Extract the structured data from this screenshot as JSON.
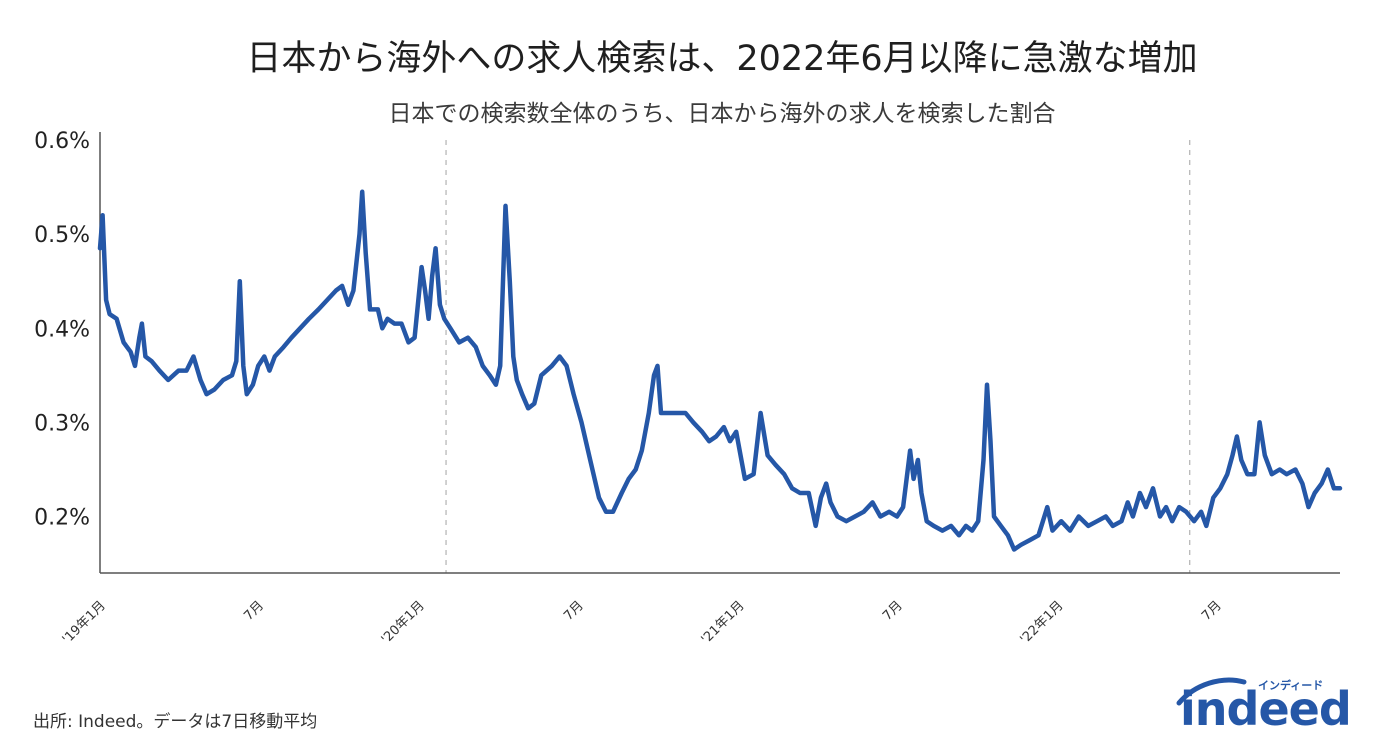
{
  "chart_data": {
    "type": "line",
    "title": "日本から海外への求人検索は、2022年6月以降に急激な増加",
    "subtitle": "日本での検索数全体のうち、日本から海外の求人を検索した割合",
    "xlabel": "",
    "ylabel": "",
    "ylim": [
      0.14,
      0.6
    ],
    "x_range": [
      "2019-01-01",
      "2022-11-20"
    ],
    "yticks": [
      {
        "value": 0.6,
        "label": "0.6%"
      },
      {
        "value": 0.5,
        "label": "0.5%"
      },
      {
        "value": 0.4,
        "label": "0.4%"
      },
      {
        "value": 0.3,
        "label": "0.3%"
      },
      {
        "value": 0.2,
        "label": "0.2%"
      }
    ],
    "xticks": [
      {
        "date": "2019-01-01",
        "label": "'19年1月"
      },
      {
        "date": "2019-07-01",
        "label": "7月"
      },
      {
        "date": "2020-01-01",
        "label": "'20年1月"
      },
      {
        "date": "2020-07-01",
        "label": "7月"
      },
      {
        "date": "2021-01-01",
        "label": "'21年1月"
      },
      {
        "date": "2021-07-01",
        "label": "7月"
      },
      {
        "date": "2022-01-01",
        "label": "'22年1月"
      },
      {
        "date": "2022-07-01",
        "label": "7月"
      }
    ],
    "reference_lines": [
      {
        "date": "2020-02-01",
        "style": "dashed"
      },
      {
        "date": "2022-06-01",
        "style": "dashed"
      }
    ],
    "grid": false,
    "legend": "none",
    "series": [
      {
        "color": "#2557a7",
        "points": [
          [
            "2019-01-01",
            0.485
          ],
          [
            "2019-01-04",
            0.52
          ],
          [
            "2019-01-08",
            0.43
          ],
          [
            "2019-01-12",
            0.415
          ],
          [
            "2019-01-20",
            0.41
          ],
          [
            "2019-01-28",
            0.385
          ],
          [
            "2019-02-05",
            0.375
          ],
          [
            "2019-02-10",
            0.36
          ],
          [
            "2019-02-15",
            0.39
          ],
          [
            "2019-02-18",
            0.405
          ],
          [
            "2019-02-22",
            0.37
          ],
          [
            "2019-03-01",
            0.365
          ],
          [
            "2019-03-10",
            0.355
          ],
          [
            "2019-03-20",
            0.345
          ],
          [
            "2019-04-01",
            0.355
          ],
          [
            "2019-04-10",
            0.355
          ],
          [
            "2019-04-18",
            0.37
          ],
          [
            "2019-04-26",
            0.345
          ],
          [
            "2019-05-03",
            0.33
          ],
          [
            "2019-05-12",
            0.335
          ],
          [
            "2019-05-22",
            0.345
          ],
          [
            "2019-06-01",
            0.35
          ],
          [
            "2019-06-06",
            0.365
          ],
          [
            "2019-06-10",
            0.45
          ],
          [
            "2019-06-14",
            0.36
          ],
          [
            "2019-06-18",
            0.33
          ],
          [
            "2019-06-25",
            0.34
          ],
          [
            "2019-07-01",
            0.36
          ],
          [
            "2019-07-08",
            0.37
          ],
          [
            "2019-07-14",
            0.355
          ],
          [
            "2019-07-20",
            0.37
          ],
          [
            "2019-07-30",
            0.38
          ],
          [
            "2019-08-08",
            0.39
          ],
          [
            "2019-08-18",
            0.4
          ],
          [
            "2019-08-28",
            0.41
          ],
          [
            "2019-09-08",
            0.42
          ],
          [
            "2019-09-18",
            0.43
          ],
          [
            "2019-09-28",
            0.44
          ],
          [
            "2019-10-05",
            0.445
          ],
          [
            "2019-10-12",
            0.425
          ],
          [
            "2019-10-18",
            0.44
          ],
          [
            "2019-10-25",
            0.5
          ],
          [
            "2019-10-28",
            0.545
          ],
          [
            "2019-11-01",
            0.48
          ],
          [
            "2019-11-06",
            0.42
          ],
          [
            "2019-11-15",
            0.42
          ],
          [
            "2019-11-20",
            0.4
          ],
          [
            "2019-11-26",
            0.41
          ],
          [
            "2019-12-04",
            0.405
          ],
          [
            "2019-12-12",
            0.405
          ],
          [
            "2019-12-20",
            0.385
          ],
          [
            "2019-12-27",
            0.39
          ],
          [
            "2020-01-04",
            0.465
          ],
          [
            "2020-01-08",
            0.44
          ],
          [
            "2020-01-12",
            0.41
          ],
          [
            "2020-01-16",
            0.455
          ],
          [
            "2020-01-20",
            0.485
          ],
          [
            "2020-01-25",
            0.425
          ],
          [
            "2020-01-30",
            0.41
          ],
          [
            "2020-02-06",
            0.4
          ],
          [
            "2020-02-16",
            0.385
          ],
          [
            "2020-02-26",
            0.39
          ],
          [
            "2020-03-06",
            0.38
          ],
          [
            "2020-03-14",
            0.36
          ],
          [
            "2020-03-22",
            0.35
          ],
          [
            "2020-03-29",
            0.34
          ],
          [
            "2020-04-03",
            0.36
          ],
          [
            "2020-04-09",
            0.53
          ],
          [
            "2020-04-14",
            0.45
          ],
          [
            "2020-04-18",
            0.37
          ],
          [
            "2020-04-22",
            0.345
          ],
          [
            "2020-04-28",
            0.33
          ],
          [
            "2020-05-05",
            0.315
          ],
          [
            "2020-05-12",
            0.32
          ],
          [
            "2020-05-20",
            0.35
          ],
          [
            "2020-06-01",
            0.36
          ],
          [
            "2020-06-10",
            0.37
          ],
          [
            "2020-06-18",
            0.36
          ],
          [
            "2020-06-26",
            0.33
          ],
          [
            "2020-07-05",
            0.3
          ],
          [
            "2020-07-15",
            0.26
          ],
          [
            "2020-07-25",
            0.22
          ],
          [
            "2020-08-02",
            0.205
          ],
          [
            "2020-08-10",
            0.205
          ],
          [
            "2020-08-20",
            0.225
          ],
          [
            "2020-08-28",
            0.24
          ],
          [
            "2020-09-05",
            0.25
          ],
          [
            "2020-09-12",
            0.27
          ],
          [
            "2020-09-20",
            0.31
          ],
          [
            "2020-09-26",
            0.35
          ],
          [
            "2020-09-30",
            0.36
          ],
          [
            "2020-10-04",
            0.31
          ],
          [
            "2020-10-12",
            0.31
          ],
          [
            "2020-10-22",
            0.31
          ],
          [
            "2020-11-01",
            0.31
          ],
          [
            "2020-11-10",
            0.3
          ],
          [
            "2020-11-20",
            0.29
          ],
          [
            "2020-11-28",
            0.28
          ],
          [
            "2020-12-06",
            0.285
          ],
          [
            "2020-12-15",
            0.295
          ],
          [
            "2020-12-22",
            0.28
          ],
          [
            "2020-12-29",
            0.29
          ],
          [
            "2021-01-08",
            0.24
          ],
          [
            "2021-01-18",
            0.245
          ],
          [
            "2021-01-26",
            0.31
          ],
          [
            "2021-02-03",
            0.265
          ],
          [
            "2021-02-12",
            0.255
          ],
          [
            "2021-02-22",
            0.245
          ],
          [
            "2021-03-03",
            0.23
          ],
          [
            "2021-03-12",
            0.225
          ],
          [
            "2021-03-22",
            0.225
          ],
          [
            "2021-03-30",
            0.19
          ],
          [
            "2021-04-05",
            0.22
          ],
          [
            "2021-04-11",
            0.235
          ],
          [
            "2021-04-16",
            0.215
          ],
          [
            "2021-04-24",
            0.2
          ],
          [
            "2021-05-04",
            0.195
          ],
          [
            "2021-05-14",
            0.2
          ],
          [
            "2021-05-24",
            0.205
          ],
          [
            "2021-06-03",
            0.215
          ],
          [
            "2021-06-12",
            0.2
          ],
          [
            "2021-06-22",
            0.205
          ],
          [
            "2021-07-01",
            0.2
          ],
          [
            "2021-07-08",
            0.21
          ],
          [
            "2021-07-16",
            0.27
          ],
          [
            "2021-07-20",
            0.24
          ],
          [
            "2021-07-25",
            0.26
          ],
          [
            "2021-07-29",
            0.225
          ],
          [
            "2021-08-04",
            0.195
          ],
          [
            "2021-08-12",
            0.19
          ],
          [
            "2021-08-22",
            0.185
          ],
          [
            "2021-09-01",
            0.19
          ],
          [
            "2021-09-10",
            0.18
          ],
          [
            "2021-09-18",
            0.19
          ],
          [
            "2021-09-25",
            0.185
          ],
          [
            "2021-10-02",
            0.195
          ],
          [
            "2021-10-08",
            0.26
          ],
          [
            "2021-10-12",
            0.34
          ],
          [
            "2021-10-16",
            0.28
          ],
          [
            "2021-10-20",
            0.2
          ],
          [
            "2021-10-28",
            0.19
          ],
          [
            "2021-11-05",
            0.18
          ],
          [
            "2021-11-12",
            0.165
          ],
          [
            "2021-11-20",
            0.17
          ],
          [
            "2021-11-30",
            0.175
          ],
          [
            "2021-12-10",
            0.18
          ],
          [
            "2021-12-20",
            0.21
          ],
          [
            "2021-12-26",
            0.185
          ],
          [
            "2022-01-05",
            0.195
          ],
          [
            "2022-01-15",
            0.185
          ],
          [
            "2022-01-25",
            0.2
          ],
          [
            "2022-02-05",
            0.19
          ],
          [
            "2022-02-15",
            0.195
          ],
          [
            "2022-02-25",
            0.2
          ],
          [
            "2022-03-05",
            0.19
          ],
          [
            "2022-03-15",
            0.195
          ],
          [
            "2022-03-22",
            0.215
          ],
          [
            "2022-03-28",
            0.2
          ],
          [
            "2022-04-05",
            0.225
          ],
          [
            "2022-04-12",
            0.21
          ],
          [
            "2022-04-20",
            0.23
          ],
          [
            "2022-04-28",
            0.2
          ],
          [
            "2022-05-05",
            0.21
          ],
          [
            "2022-05-12",
            0.195
          ],
          [
            "2022-05-20",
            0.21
          ],
          [
            "2022-05-28",
            0.205
          ],
          [
            "2022-06-06",
            0.195
          ],
          [
            "2022-06-14",
            0.205
          ],
          [
            "2022-06-20",
            0.19
          ],
          [
            "2022-06-28",
            0.22
          ],
          [
            "2022-07-06",
            0.23
          ],
          [
            "2022-07-14",
            0.245
          ],
          [
            "2022-07-20",
            0.265
          ],
          [
            "2022-07-25",
            0.285
          ],
          [
            "2022-07-30",
            0.26
          ],
          [
            "2022-08-06",
            0.245
          ],
          [
            "2022-08-14",
            0.245
          ],
          [
            "2022-08-20",
            0.3
          ],
          [
            "2022-08-26",
            0.265
          ],
          [
            "2022-09-03",
            0.245
          ],
          [
            "2022-09-12",
            0.25
          ],
          [
            "2022-09-20",
            0.245
          ],
          [
            "2022-09-30",
            0.25
          ],
          [
            "2022-10-08",
            0.235
          ],
          [
            "2022-10-15",
            0.21
          ],
          [
            "2022-10-22",
            0.225
          ],
          [
            "2022-10-30",
            0.235
          ],
          [
            "2022-11-06",
            0.25
          ],
          [
            "2022-11-13",
            0.23
          ],
          [
            "2022-11-20",
            0.23
          ]
        ]
      }
    ]
  },
  "source_note": "出所: Indeed。データは7日移動平均",
  "logo": {
    "wordmark": "indeed",
    "kana": "インディード",
    "color": "#2557a7"
  }
}
